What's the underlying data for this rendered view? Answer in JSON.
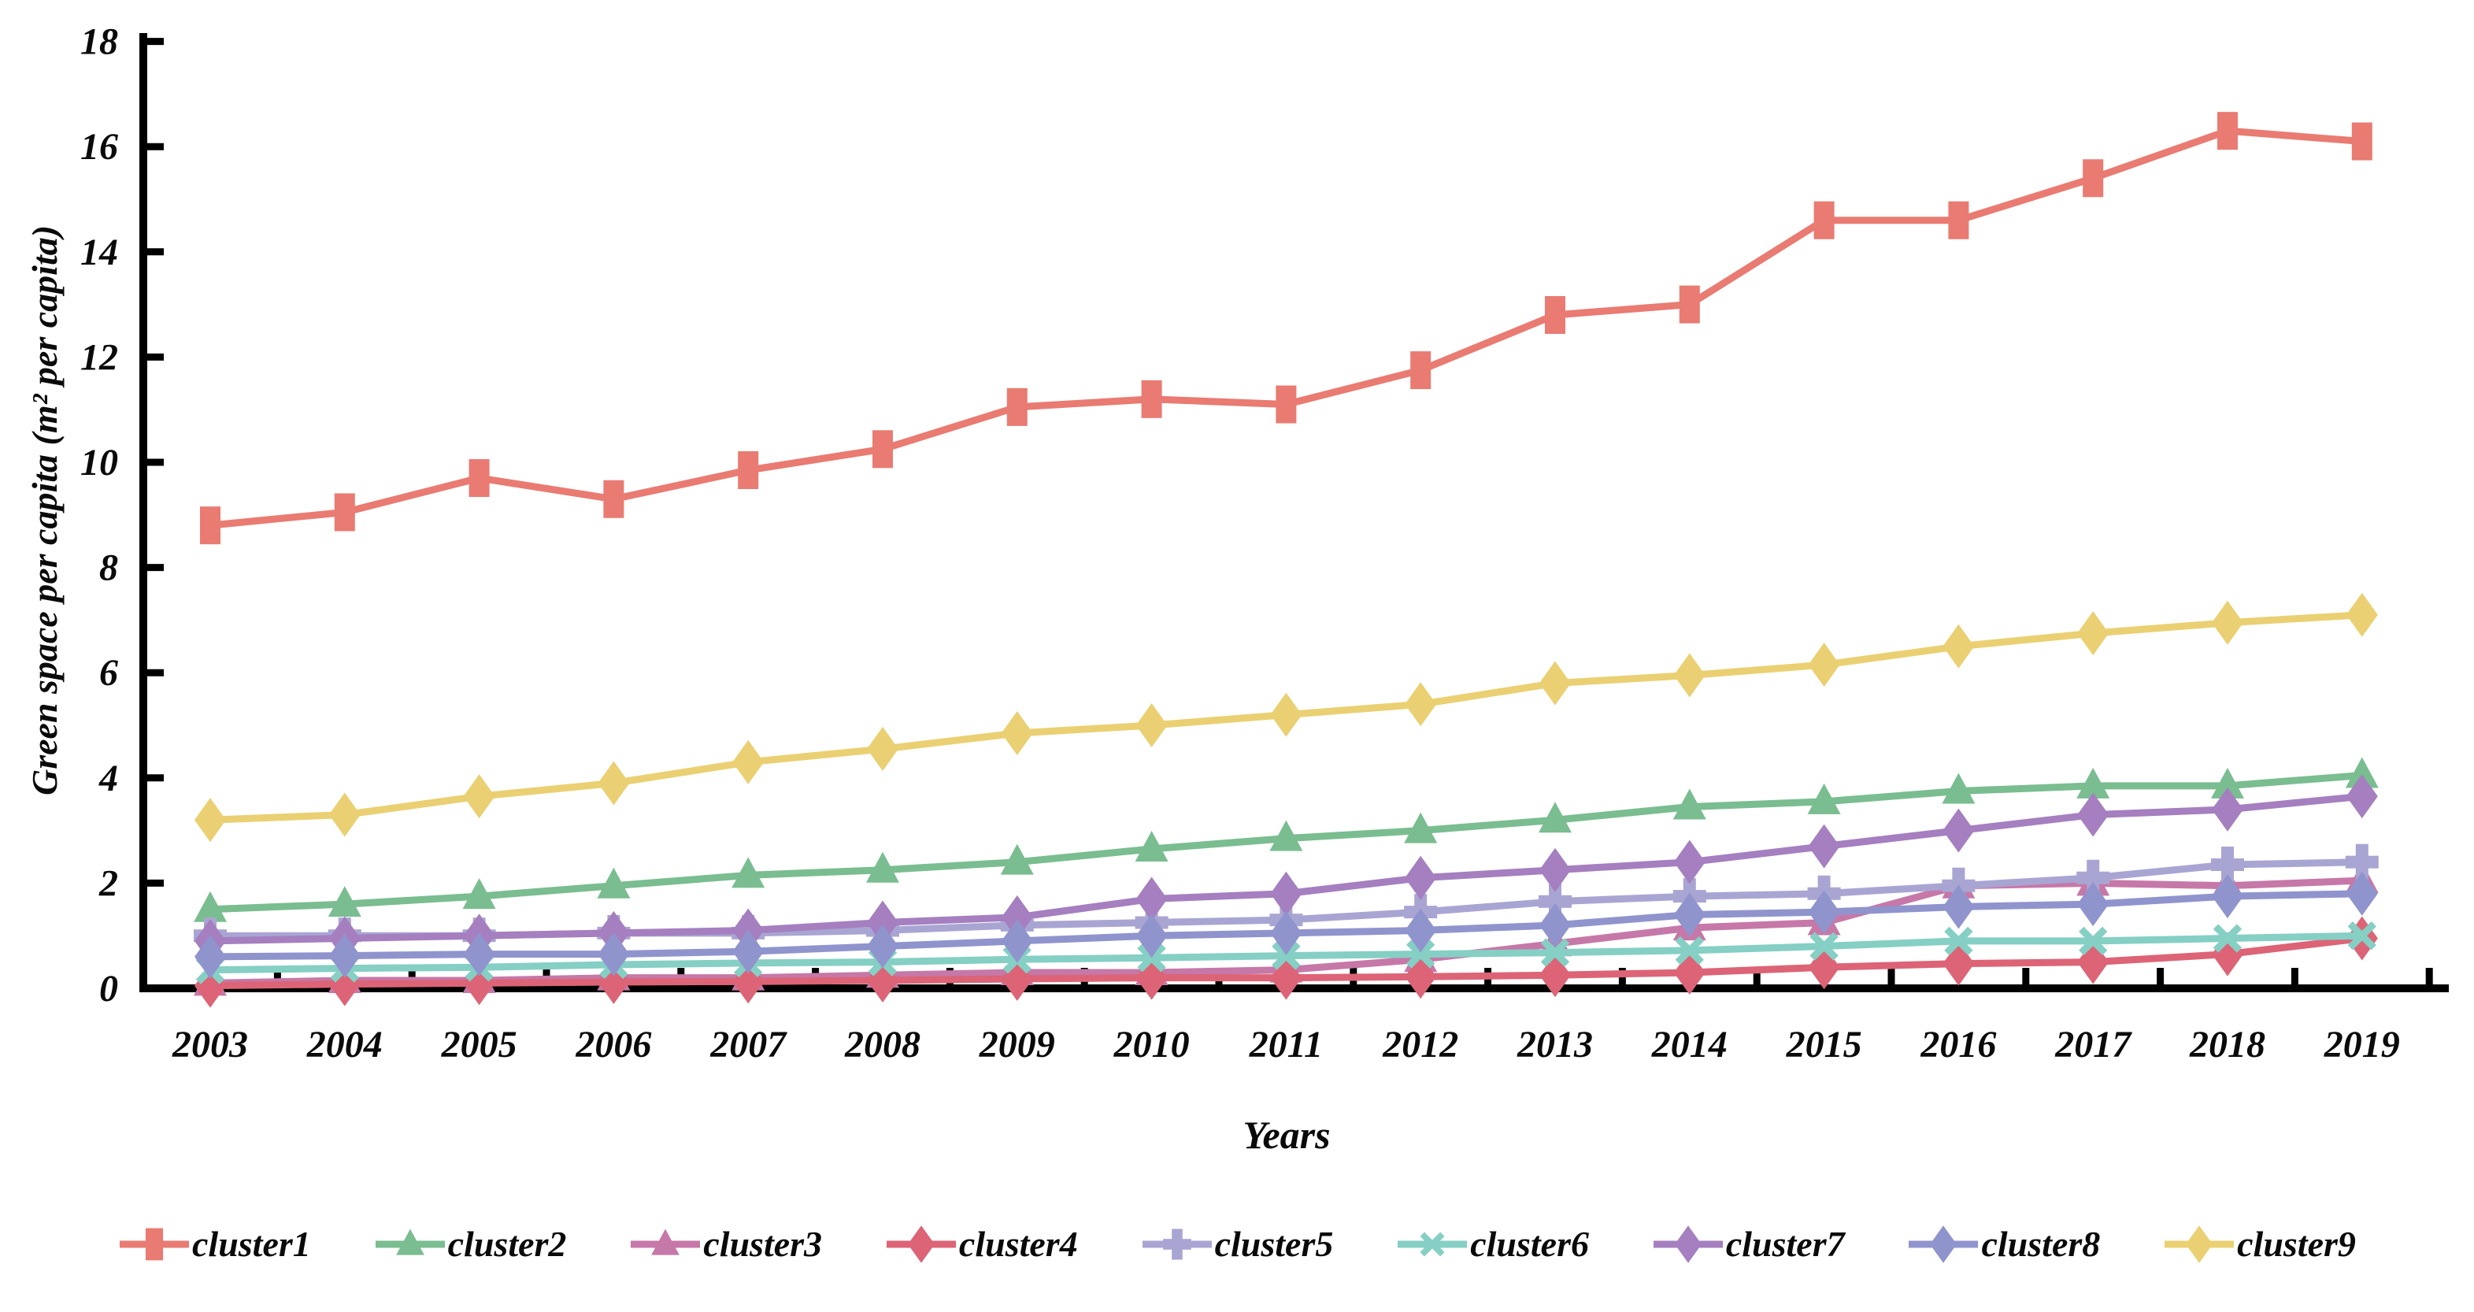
{
  "chart_data": {
    "type": "line",
    "title": "",
    "xlabel": "Years",
    "ylabel": "Green space per capita (m² per capita)",
    "x": [
      "2003",
      "2004",
      "2005",
      "2006",
      "2007",
      "2008",
      "2009",
      "2010",
      "2011",
      "2012",
      "2013",
      "2014",
      "2015",
      "2016",
      "2017",
      "2018",
      "2019"
    ],
    "ylim": [
      0,
      18
    ],
    "ytick_step": 2,
    "grid": false,
    "legend_position": "bottom",
    "series": [
      {
        "name": "cluster1",
        "color": "#e97b72",
        "marker": "square",
        "values": [
          8.8,
          9.05,
          9.7,
          9.3,
          9.85,
          10.25,
          11.05,
          11.2,
          11.1,
          11.75,
          12.8,
          13.0,
          14.6,
          14.6,
          15.4,
          16.3,
          16.1
        ]
      },
      {
        "name": "cluster2",
        "color": "#7abd90",
        "marker": "triangle",
        "values": [
          1.5,
          1.6,
          1.75,
          1.95,
          2.15,
          2.25,
          2.4,
          2.65,
          2.85,
          3.0,
          3.2,
          3.45,
          3.55,
          3.75,
          3.85,
          3.85,
          4.05
        ]
      },
      {
        "name": "cluster3",
        "color": "#c678a8",
        "marker": "triangle",
        "values": [
          0.1,
          0.15,
          0.15,
          0.2,
          0.2,
          0.25,
          0.3,
          0.3,
          0.35,
          0.55,
          0.85,
          1.15,
          1.25,
          1.95,
          2.0,
          1.95,
          2.05
        ]
      },
      {
        "name": "cluster4",
        "color": "#dc6476",
        "marker": "diamond",
        "values": [
          0.05,
          0.08,
          0.1,
          0.12,
          0.13,
          0.15,
          0.18,
          0.2,
          0.2,
          0.22,
          0.25,
          0.3,
          0.4,
          0.47,
          0.5,
          0.65,
          0.95
        ]
      },
      {
        "name": "cluster5",
        "color": "#a9a5d3",
        "marker": "plus",
        "values": [
          1.0,
          1.0,
          1.0,
          1.05,
          1.05,
          1.1,
          1.2,
          1.25,
          1.3,
          1.45,
          1.65,
          1.75,
          1.8,
          1.95,
          2.1,
          2.35,
          2.4
        ]
      },
      {
        "name": "cluster6",
        "color": "#85cfc4",
        "marker": "x",
        "values": [
          0.35,
          0.38,
          0.4,
          0.45,
          0.48,
          0.5,
          0.55,
          0.58,
          0.62,
          0.65,
          0.68,
          0.72,
          0.8,
          0.9,
          0.9,
          0.95,
          1.0
        ]
      },
      {
        "name": "cluster7",
        "color": "#a57fbf",
        "marker": "diamond",
        "values": [
          0.9,
          0.95,
          1.0,
          1.05,
          1.1,
          1.25,
          1.35,
          1.7,
          1.8,
          2.1,
          2.25,
          2.4,
          2.7,
          3.0,
          3.3,
          3.4,
          3.65
        ]
      },
      {
        "name": "cluster8",
        "color": "#9094cd",
        "marker": "diamond",
        "values": [
          0.6,
          0.62,
          0.65,
          0.65,
          0.7,
          0.8,
          0.9,
          1.0,
          1.05,
          1.1,
          1.2,
          1.4,
          1.45,
          1.55,
          1.6,
          1.75,
          1.8
        ]
      },
      {
        "name": "cluster9",
        "color": "#ead072",
        "marker": "diamond",
        "values": [
          3.2,
          3.3,
          3.65,
          3.9,
          4.3,
          4.55,
          4.85,
          5.0,
          5.2,
          5.4,
          5.8,
          5.95,
          6.15,
          6.5,
          6.75,
          6.95,
          7.1
        ]
      }
    ]
  }
}
